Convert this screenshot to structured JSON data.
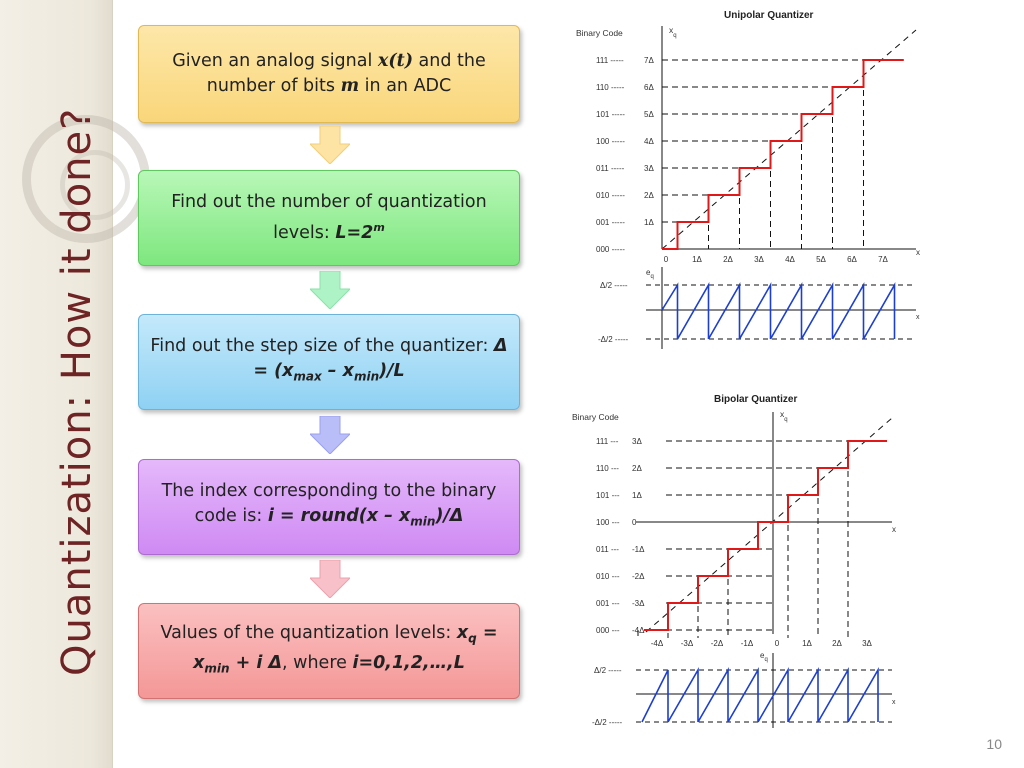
{
  "slide": {
    "title": "Quantization: How it done?",
    "page_number": "10"
  },
  "steps": [
    {
      "pre": "Given an analog signal ",
      "sym1": "x(t)",
      "mid": " and the number of bits ",
      "sym2": "m",
      "post": " in an ADC"
    },
    {
      "pre": "Find out the number of quantization levels: ",
      "formula": "L=2",
      "exp": "m"
    },
    {
      "pre": "Find out the step size of the quantizer: ",
      "f1": "Δ = (x",
      "s1": "max",
      "f2": " – x",
      "s2": "min",
      "f3": ")/L"
    },
    {
      "pre": "The index corresponding to the binary code is: ",
      "f1": "i = round(x – x",
      "s1": "min",
      "f2": ")/Δ"
    },
    {
      "pre": "Values of the quantization levels: ",
      "f1": "x",
      "s1": "q",
      "f2": " = x",
      "s2": "min",
      "f3": " + i Δ",
      "mid": ", where ",
      "f4": "i=0,1,2,…,L"
    }
  ],
  "unipolar": {
    "title": "Unipolar Quantizer",
    "binary_code_label": "Binary Code",
    "xq_label": "x",
    "xq_sub": "q",
    "x_label": "x",
    "codes": [
      "111 -----",
      "110 -----",
      "101 -----",
      "100 -----",
      "011 -----",
      "010 -----",
      "001 -----",
      "000 -----"
    ],
    "levels": [
      "7Δ",
      "6Δ",
      "5Δ",
      "4Δ",
      "3Δ",
      "2Δ",
      "1Δ"
    ],
    "x_ticks": [
      "0",
      "1Δ",
      "2Δ",
      "3Δ",
      "4Δ",
      "5Δ",
      "6Δ",
      "7Δ"
    ],
    "eq_label": "e",
    "eq_sub": "q",
    "err_top": "Δ/2  -----",
    "err_bottom": "-Δ/2 -----",
    "err_x": "x"
  },
  "bipolar": {
    "title": "Bipolar Quantizer",
    "binary_code_label": "Binary Code",
    "xq_label": "x",
    "xq_sub": "q",
    "x_label": "x",
    "codes": [
      "111 ---",
      "110 ---",
      "101 ---",
      "100 ---",
      "011 ---",
      "010 ---",
      "001 ---",
      "000 ---"
    ],
    "levels": [
      "3Δ",
      "2Δ",
      "1Δ",
      "0",
      "-1Δ",
      "-2Δ",
      "-3Δ",
      "-4Δ"
    ],
    "x_ticks": [
      "-4Δ",
      "-3Δ",
      "-2Δ",
      "-1Δ",
      "0",
      "1Δ",
      "2Δ",
      "3Δ"
    ],
    "eq_label": "e",
    "eq_sub": "q",
    "err_top": "Δ/2  -----",
    "err_bottom": "-Δ/2 -----",
    "err_x": "x"
  },
  "colors": {
    "title": "#6e2424",
    "staircase": "#e01818",
    "error_wave": "#1d3fd1",
    "step1": "#fcdf8f",
    "step2": "#8fee8f",
    "step3": "#a6dcf6",
    "step4": "#d99df6",
    "step5": "#f7a9a9"
  }
}
